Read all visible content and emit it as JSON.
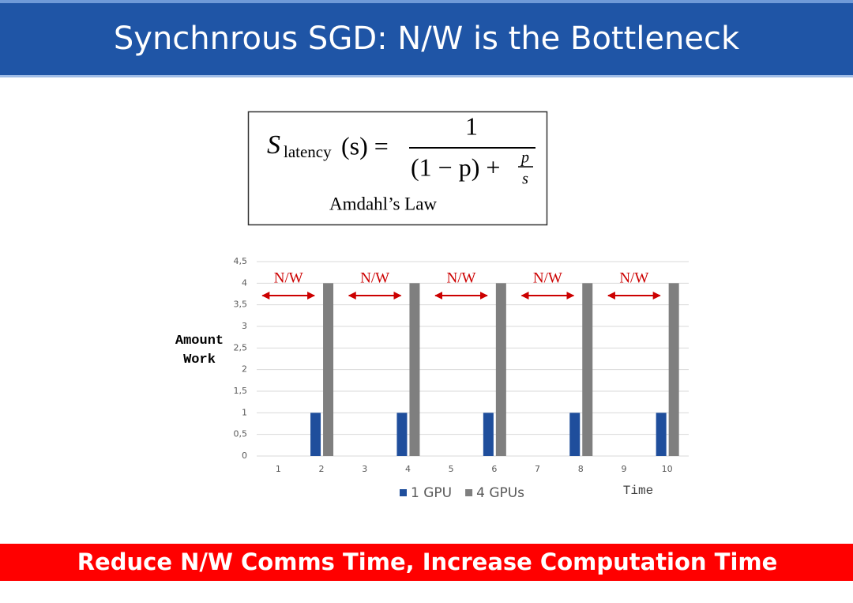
{
  "title": "Synchnrous SGD: N/W is the Bottleneck",
  "formula": {
    "symbol": "S",
    "subscript": "latency",
    "argument": "(s) =",
    "numerator": "1",
    "denominator": "(1 − p) +",
    "inner_numerator": "p",
    "inner_denominator": "s",
    "caption": "Amdahl’s Law"
  },
  "chart_data": {
    "type": "bar",
    "categories": [
      "1",
      "2",
      "3",
      "4",
      "5",
      "6",
      "7",
      "8",
      "9",
      "10"
    ],
    "series": [
      {
        "name": "1 GPU",
        "color": "#1f4e9c",
        "values": [
          0,
          1,
          0,
          1,
          0,
          1,
          0,
          1,
          0,
          1
        ]
      },
      {
        "name": "4 GPUs",
        "color": "#7f7f7f",
        "values": [
          0,
          4,
          0,
          4,
          0,
          4,
          0,
          4,
          0,
          4
        ]
      }
    ],
    "ylim": [
      0,
      4.5
    ],
    "yticks": [
      0,
      {
        "value": 0.5,
        "label": "0,5"
      },
      1,
      {
        "value": 1.5,
        "label": "1,5"
      },
      2,
      {
        "value": 2.5,
        "label": "2,5"
      },
      3,
      {
        "value": 3.5,
        "label": "3,5"
      },
      4,
      {
        "value": 4.5,
        "label": "4,5"
      }
    ],
    "grid": true,
    "y_label": "Amount Work",
    "x_label": "Time",
    "annotations": [
      "N/W",
      "N/W",
      "N/W",
      "N/W",
      "N/W"
    ],
    "annotation_color": "#cc0000"
  },
  "footer": "Reduce N/W Comms Time, Increase Computation Time"
}
